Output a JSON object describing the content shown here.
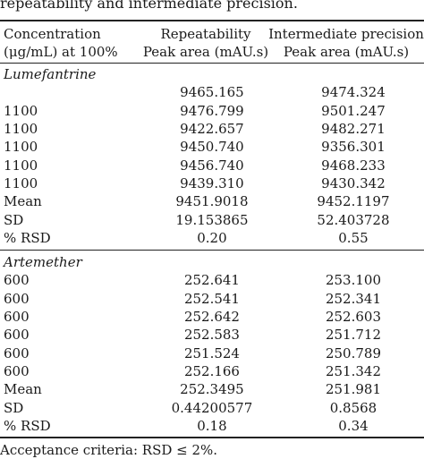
{
  "caption": "repeatability and intermediate precision.",
  "headers": {
    "col0_line1": "Concentration",
    "col0_line2": "(μg/mL) at 100%",
    "col1_line1": "Repeatability",
    "col1_line2": "Peak area (mAU.s)",
    "col2_line1": "Intermediate precision",
    "col2_line2": "Peak area (mAU.s)"
  },
  "sections": [
    {
      "label": "Lumefantrine",
      "rows": [
        [
          "",
          "9465.165",
          "9474.324"
        ],
        [
          "1100",
          "9476.799",
          "9501.247"
        ],
        [
          "1100",
          "9422.657",
          "9482.271"
        ],
        [
          "1100",
          "9450.740",
          "9356.301"
        ],
        [
          "1100",
          "9456.740",
          "9468.233"
        ],
        [
          "1100",
          "9439.310",
          "9430.342"
        ],
        [
          "Mean",
          "9451.9018",
          "9452.1197"
        ],
        [
          "SD",
          "19.153865",
          "52.403728"
        ],
        [
          "% RSD",
          "0.20",
          "0.55"
        ]
      ]
    },
    {
      "label": "Artemether",
      "rows": [
        [
          "600",
          "252.641",
          "253.100"
        ],
        [
          "600",
          "252.541",
          "252.341"
        ],
        [
          "600",
          "252.642",
          "252.603"
        ],
        [
          "600",
          "252.583",
          "251.712"
        ],
        [
          "600",
          "251.524",
          "250.789"
        ],
        [
          "600",
          "252.166",
          "251.342"
        ],
        [
          "Mean",
          "252.3495",
          "251.981"
        ],
        [
          "SD",
          "0.44200577",
          "0.8568"
        ],
        [
          "% RSD",
          "0.18",
          "0.34"
        ]
      ]
    }
  ],
  "footnote": "Acceptance criteria: RSD ≤ 2%."
}
